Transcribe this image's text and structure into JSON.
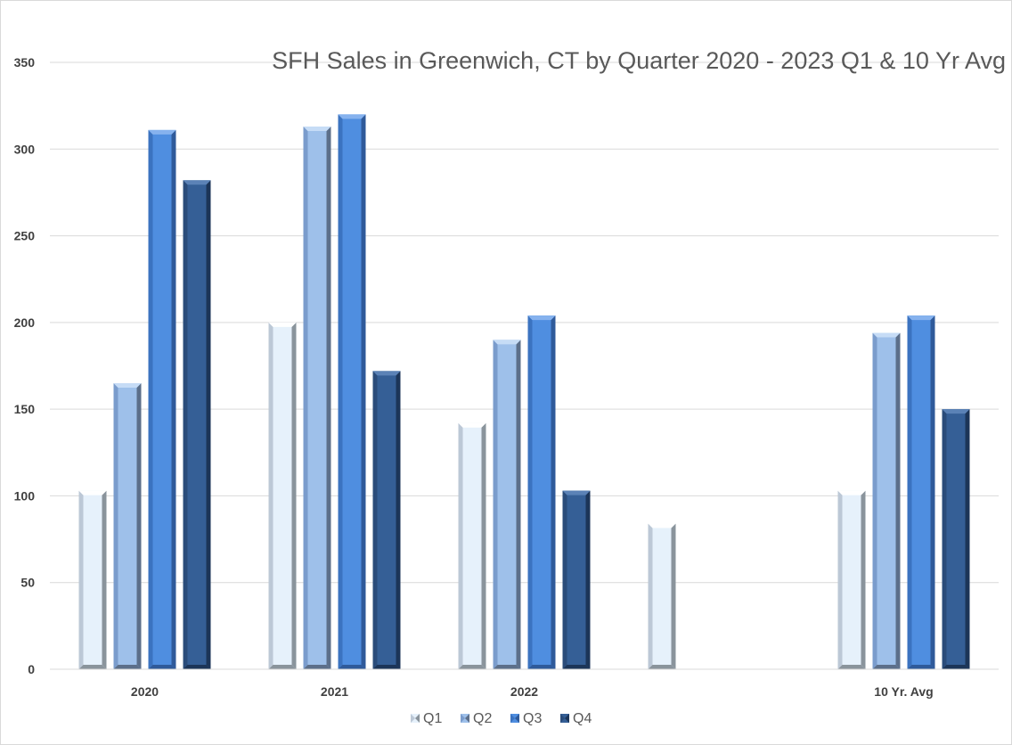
{
  "chart_data": {
    "type": "bar",
    "title": "SFH Sales in Greenwich, CT by Quarter 2020 - 2023 Q1 & 10 Yr Avg",
    "xlabel": "",
    "ylabel": "",
    "ylim": [
      0,
      350
    ],
    "yticks": [
      "0",
      "50",
      "100",
      "150",
      "200",
      "250",
      "300",
      "350"
    ],
    "grid": true,
    "legend_position": "bottom",
    "categories": [
      "2020",
      "2021",
      "2022",
      "",
      "10 Yr. Avg"
    ],
    "series": [
      {
        "name": "Q1",
        "values": [
          103,
          200,
          142,
          84,
          103
        ]
      },
      {
        "name": "Q2",
        "values": [
          165,
          313,
          190,
          null,
          194
        ]
      },
      {
        "name": "Q3",
        "values": [
          311,
          320,
          204,
          null,
          204
        ]
      },
      {
        "name": "Q4",
        "values": [
          282,
          172,
          103,
          null,
          150
        ]
      }
    ],
    "colors": {
      "Q1": {
        "face": "#e6f1fb",
        "left": "#bcc8d6",
        "right": "#8a949c",
        "top": "#ffffff"
      },
      "Q2": {
        "face": "#9ec0ea",
        "left": "#7a9ccc",
        "right": "#5c6f8a",
        "top": "#c6dcf6"
      },
      "Q3": {
        "face": "#4f8ee0",
        "left": "#3b73c0",
        "right": "#2f5a9a",
        "top": "#86b2ee"
      },
      "Q4": {
        "face": "#355f96",
        "left": "#2a4c7a",
        "right": "#1c3558",
        "top": "#5b82b6"
      }
    }
  }
}
